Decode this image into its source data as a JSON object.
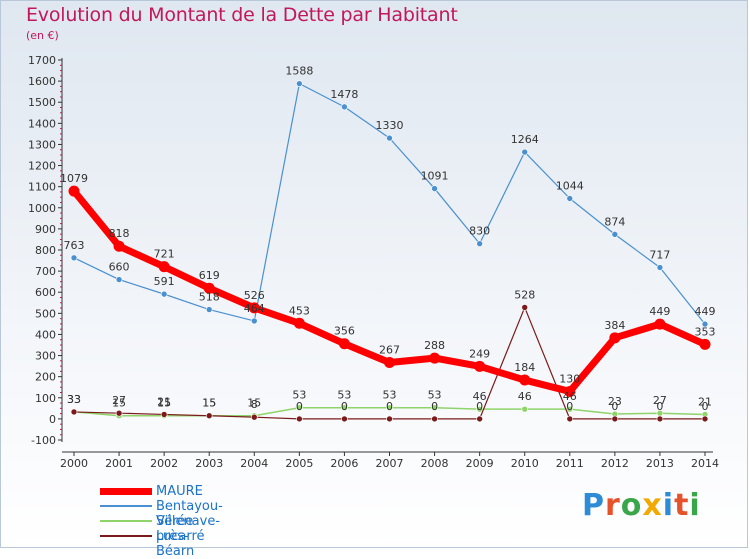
{
  "header": {
    "title": "Evolution du Montant de la Dette par Habitant",
    "unit": "(en €)"
  },
  "logo": {
    "text": "Proxiti",
    "letter_colors": [
      "#2e8bd6",
      "#e6532b",
      "#3aa64a",
      "#f2a900",
      "#2e8bd6",
      "#e6532b",
      "#3aa64a"
    ]
  },
  "chart_data": {
    "type": "line",
    "title": "Evolution du Montant de la Dette par Habitant",
    "subtitle": "(en €)",
    "x": [
      "2000",
      "2001",
      "2002",
      "2003",
      "2004",
      "2005",
      "2006",
      "2007",
      "2008",
      "2009",
      "2010",
      "2011",
      "2012",
      "2013",
      "2014"
    ],
    "ylim": [
      -100,
      1700
    ],
    "yticks": [
      -100,
      0,
      100,
      200,
      300,
      400,
      500,
      600,
      700,
      800,
      900,
      1000,
      1100,
      1200,
      1300,
      1400,
      1500,
      1600,
      1700
    ],
    "grid": false,
    "legend_position": "bottom-left",
    "series": [
      {
        "name": "MAURE",
        "color": "#ff0000",
        "values": [
          1079,
          818,
          721,
          619,
          526,
          453,
          356,
          267,
          288,
          249,
          184,
          130,
          384,
          449,
          353
        ],
        "labels": [
          "1079",
          "818",
          "721",
          "619",
          "526",
          "453",
          "356",
          "267",
          "288",
          "249",
          "184",
          "130",
          "384",
          "449",
          "353"
        ]
      },
      {
        "name": "Bentayou-Sérée",
        "color": "#4a90d0",
        "values": [
          763,
          660,
          591,
          518,
          464,
          1588,
          1478,
          1330,
          1091,
          830,
          1264,
          1044,
          874,
          717,
          449
        ],
        "labels": [
          "763",
          "660",
          "591",
          "518",
          "464",
          "1588",
          "1478",
          "1330",
          "1091",
          "830",
          "1264",
          "1044",
          "874",
          "717",
          "449"
        ]
      },
      {
        "name": "Villenave-près-Béarn",
        "color": "#8fd46a",
        "values": [
          33,
          15,
          15,
          15,
          15,
          53,
          53,
          53,
          53,
          46,
          46,
          46,
          23,
          27,
          21
        ],
        "labels": [
          "33",
          "15",
          "15",
          "15",
          "15",
          "53",
          "53",
          "53",
          "53",
          "46",
          "46",
          "46",
          "23",
          "27",
          "21"
        ]
      },
      {
        "name": "Lucarré",
        "color": "#7b1a1a",
        "values": [
          33,
          27,
          21,
          15,
          8,
          0,
          0,
          0,
          0,
          0,
          528,
          0,
          0,
          0,
          0
        ],
        "labels": [
          "33",
          "27",
          "21",
          "15",
          "8",
          "0",
          "0",
          "0",
          "0",
          "0",
          "528",
          "0",
          "0",
          "0",
          "0"
        ]
      }
    ]
  }
}
